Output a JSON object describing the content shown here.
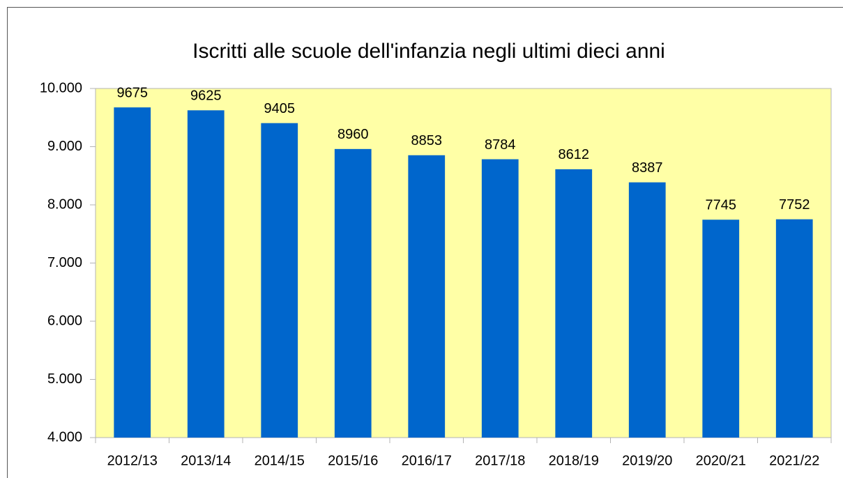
{
  "chart_data": {
    "type": "bar",
    "title": "Iscritti alle scuole dell'infanzia negli ultimi dieci anni",
    "categories": [
      "2012/13",
      "2013/14",
      "2014/15",
      "2015/16",
      "2016/17",
      "2017/18",
      "2018/19",
      "2019/20",
      "2020/21",
      "2021/22"
    ],
    "values": [
      9675,
      9625,
      9405,
      8960,
      8853,
      8784,
      8612,
      8387,
      7745,
      7752
    ],
    "color": "#0066cc",
    "plot_background": "#ffffa6",
    "ylim": [
      4000,
      10000
    ],
    "yticks": [
      {
        "value": 4000,
        "label": "4.000"
      },
      {
        "value": 5000,
        "label": "5.000"
      },
      {
        "value": 6000,
        "label": "6.000"
      },
      {
        "value": 7000,
        "label": "7.000"
      },
      {
        "value": 8000,
        "label": "8.000"
      },
      {
        "value": 9000,
        "label": "9.000"
      },
      {
        "value": 10000,
        "label": "10.000"
      }
    ],
    "grid": false
  }
}
